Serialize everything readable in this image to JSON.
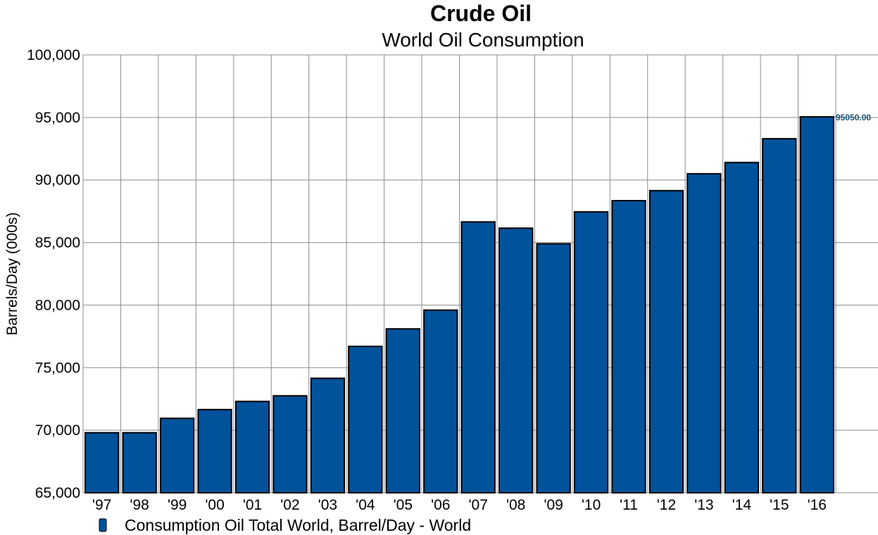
{
  "chart_data": {
    "type": "bar",
    "title": "Crude Oil",
    "subtitle": "World Oil Consumption",
    "ylabel": "Barrels/Day (000s)",
    "xlabel": "",
    "categories": [
      "'97",
      "'98",
      "'99",
      "'00",
      "'01",
      "'02",
      "'03",
      "'04",
      "'05",
      "'06",
      "'07",
      "'08",
      "'09",
      "'10",
      "'11",
      "'12",
      "'13",
      "'14",
      "'15",
      "'16"
    ],
    "series": [
      {
        "name": "Consumption Oil Total World, Barrel/Day - World",
        "color": "#00529b",
        "values": [
          69800,
          69800,
          70950,
          71650,
          72300,
          72750,
          74150,
          76700,
          78100,
          79600,
          86650,
          86150,
          84900,
          87450,
          88350,
          89150,
          90500,
          91400,
          93300,
          95050
        ]
      }
    ],
    "ylim": [
      65000,
      100000
    ],
    "yticks": [
      "65,000",
      "70,000",
      "75,000",
      "80,000",
      "85,000",
      "90,000",
      "95,000",
      "100,000"
    ],
    "ytick_values": [
      65000,
      70000,
      75000,
      80000,
      85000,
      90000,
      95000,
      100000
    ],
    "grid": true,
    "legend": "bottom-left",
    "annotation": {
      "text": "95050.00",
      "value": 95050,
      "color": "#1a5276"
    }
  }
}
